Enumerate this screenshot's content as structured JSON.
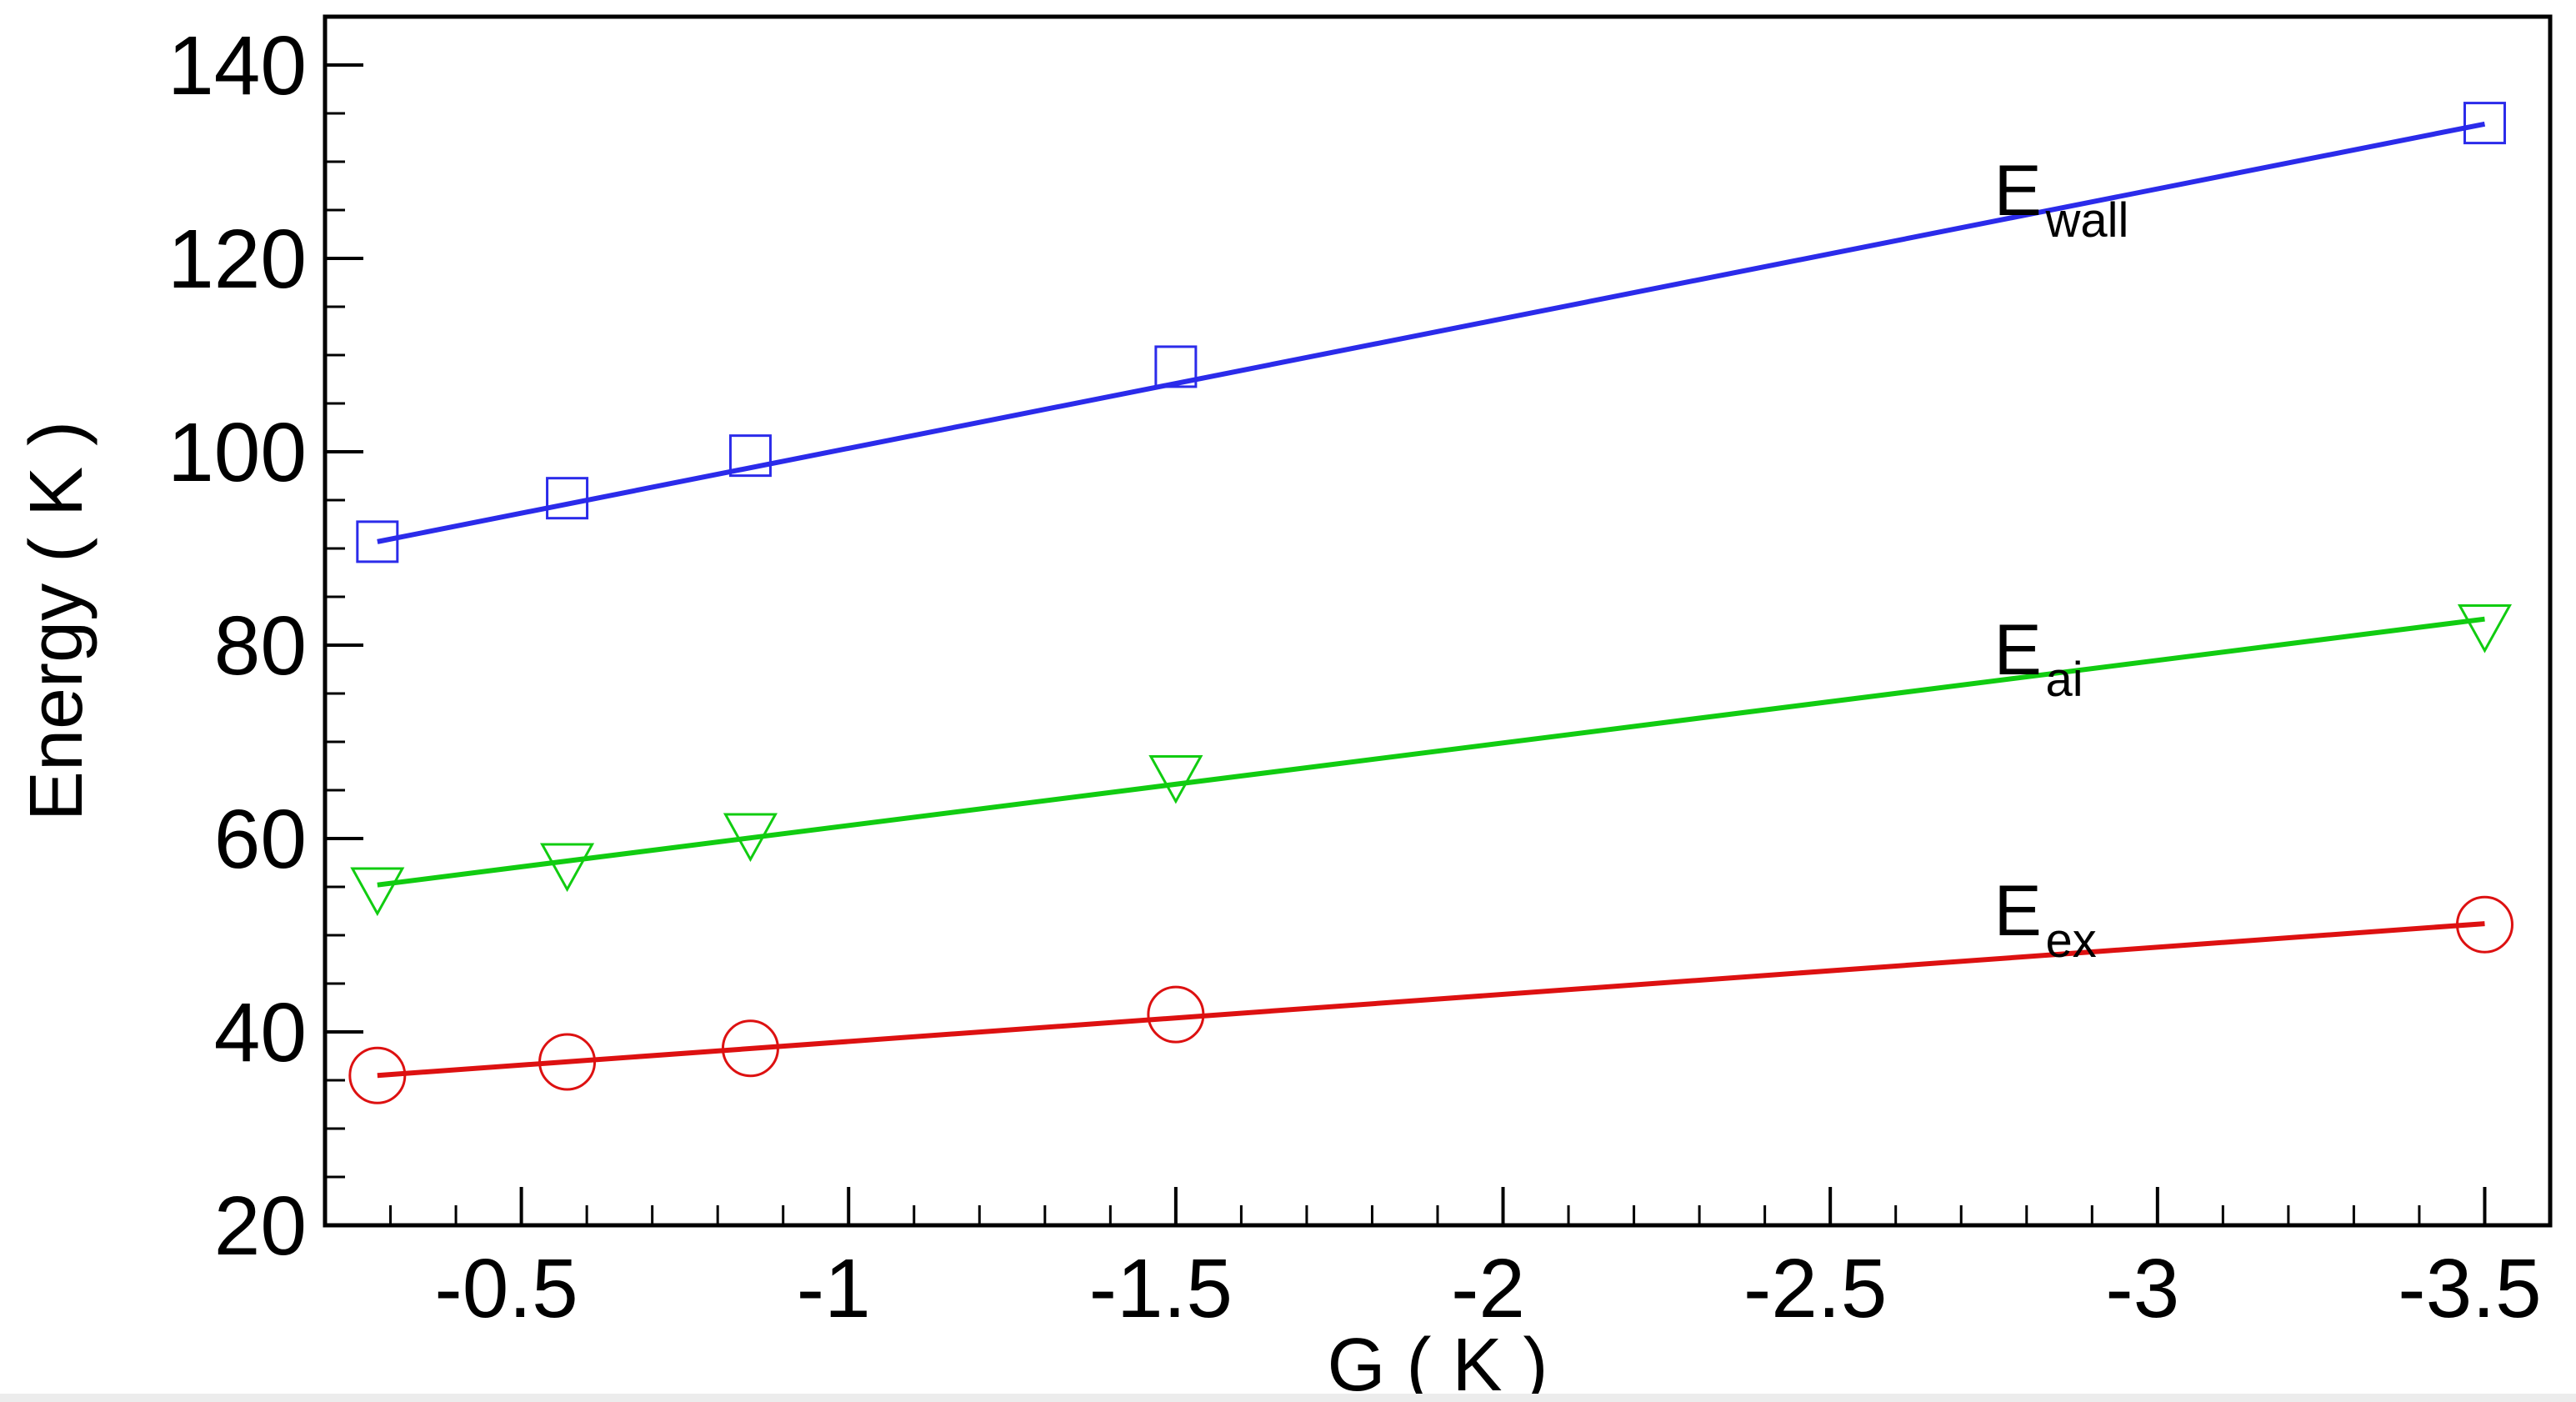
{
  "chart_data": {
    "type": "line",
    "title": "",
    "xlabel": "G ( K )",
    "ylabel": "Energy ( K )",
    "xlim": [
      -0.2,
      -3.6
    ],
    "ylim": [
      20,
      145
    ],
    "x_reversed": true,
    "x_ticks": [
      -0.5,
      -1,
      -1.5,
      -2,
      -2.5,
      -3,
      -3.5
    ],
    "x_tick_labels": [
      "-0.5",
      "-1",
      "-1.5",
      "-2",
      "-2.5",
      "-3",
      "-3.5"
    ],
    "y_ticks": [
      20,
      40,
      60,
      80,
      100,
      120,
      140
    ],
    "y_tick_labels": [
      "20",
      "40",
      "60",
      "80",
      "100",
      "120",
      "140"
    ],
    "grid": false,
    "legend": "inline labels near right end of each line",
    "series": [
      {
        "name": "wall",
        "label_main": "E",
        "label_sub": "wall",
        "color": "#2b2bea",
        "marker": "square",
        "x": [
          -0.28,
          -0.57,
          -0.85,
          -1.5,
          -3.5
        ],
        "y": [
          90.7,
          95.2,
          99.6,
          108.8,
          134.0
        ],
        "fit": {
          "x": [
            -0.28,
            -3.5
          ],
          "y": [
            90.7,
            133.9
          ]
        },
        "label_x": -2.75,
        "label_y": 124.5
      },
      {
        "name": "ai",
        "label_main": "E",
        "label_sub": "ai",
        "color": "#11cc11",
        "marker": "triangle-down",
        "x": [
          -0.28,
          -0.57,
          -0.85,
          -1.5,
          -3.5
        ],
        "y": [
          55.0,
          57.5,
          60.6,
          66.6,
          82.2
        ],
        "fit": {
          "x": [
            -0.28,
            -3.5
          ],
          "y": [
            55.2,
            82.7
          ]
        },
        "label_x": -2.75,
        "label_y": 77.0
      },
      {
        "name": "ex",
        "label_main": "E",
        "label_sub": "ex",
        "color": "#dd1111",
        "marker": "circle",
        "x": [
          -0.28,
          -0.57,
          -0.85,
          -1.5,
          -3.5
        ],
        "y": [
          35.5,
          36.9,
          38.3,
          41.8,
          51.1
        ],
        "fit": {
          "x": [
            -0.28,
            -3.5
          ],
          "y": [
            35.5,
            51.2
          ]
        },
        "label_x": -2.75,
        "label_y": 50.0
      }
    ]
  }
}
